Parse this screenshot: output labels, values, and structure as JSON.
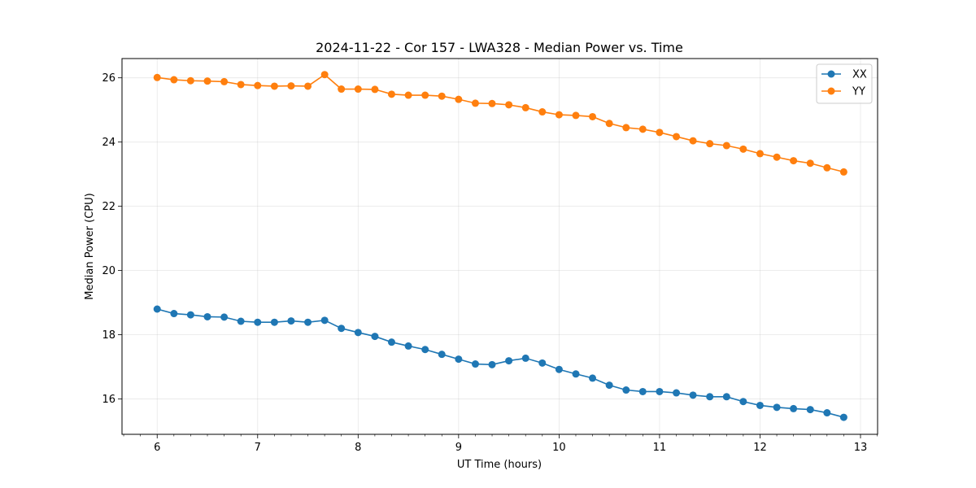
{
  "chart_data": {
    "type": "line",
    "title": "2024-11-22 - Cor 157 - LWA328 - Median Power vs. Time",
    "xlabel": "UT Time (hours)",
    "ylabel": "Median Power (CPU)",
    "xlim": [
      5.65,
      13.17
    ],
    "ylim": [
      14.9,
      26.6
    ],
    "xticks": [
      6,
      7,
      8,
      9,
      10,
      11,
      12,
      13
    ],
    "yticks": [
      16,
      18,
      20,
      22,
      24,
      26
    ],
    "grid": true,
    "legend_position": "top-right",
    "x": [
      6.0,
      6.167,
      6.333,
      6.5,
      6.667,
      6.833,
      7.0,
      7.167,
      7.333,
      7.5,
      7.667,
      7.833,
      8.0,
      8.167,
      8.333,
      8.5,
      8.667,
      8.833,
      9.0,
      9.167,
      9.333,
      9.5,
      9.667,
      9.833,
      10.0,
      10.167,
      10.333,
      10.5,
      10.667,
      10.833,
      11.0,
      11.167,
      11.333,
      11.5,
      11.667,
      11.833,
      12.0,
      12.167,
      12.333,
      12.5,
      12.667,
      12.833
    ],
    "series": [
      {
        "name": "XX",
        "color": "#1f77b4",
        "values": [
          18.8,
          18.66,
          18.62,
          18.56,
          18.55,
          18.42,
          18.39,
          18.39,
          18.43,
          18.39,
          18.45,
          18.2,
          18.07,
          17.95,
          17.77,
          17.65,
          17.54,
          17.39,
          17.24,
          17.09,
          17.07,
          17.19,
          17.27,
          17.12,
          16.92,
          16.78,
          16.65,
          16.43,
          16.28,
          16.23,
          16.23,
          16.19,
          16.12,
          16.07,
          16.07,
          15.92,
          15.8,
          15.74,
          15.7,
          15.67,
          15.57,
          15.43
        ]
      },
      {
        "name": "YY",
        "color": "#ff7f0e",
        "values": [
          26.01,
          25.94,
          25.91,
          25.9,
          25.88,
          25.79,
          25.76,
          25.74,
          25.75,
          25.74,
          26.1,
          25.65,
          25.65,
          25.64,
          25.49,
          25.46,
          25.46,
          25.43,
          25.33,
          25.21,
          25.2,
          25.16,
          25.07,
          24.94,
          24.85,
          24.83,
          24.79,
          24.58,
          24.45,
          24.4,
          24.3,
          24.17,
          24.04,
          23.95,
          23.89,
          23.78,
          23.64,
          23.53,
          23.42,
          23.34,
          23.2,
          23.07
        ]
      }
    ]
  }
}
